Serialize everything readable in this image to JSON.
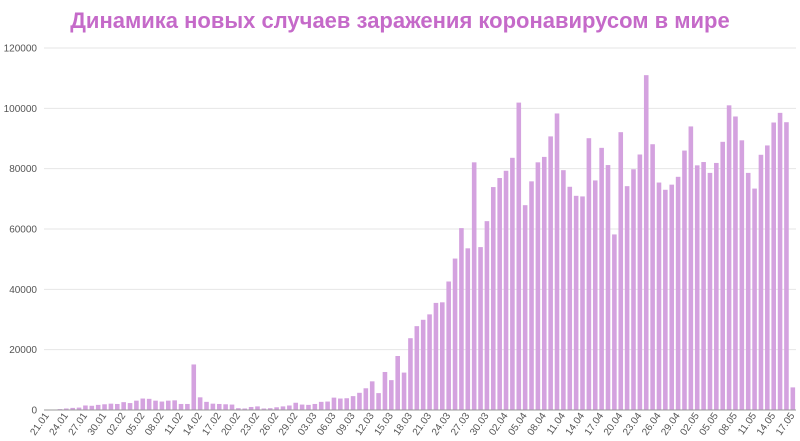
{
  "chart_data": {
    "type": "bar",
    "title": "Динамика новых случаев заражения коронавирусом в мире",
    "xlabel": "",
    "ylabel": "",
    "ylim": [
      0,
      120000
    ],
    "y_ticks": [
      0,
      20000,
      40000,
      60000,
      80000,
      100000,
      120000
    ],
    "grid": true,
    "colors": {
      "bar": "#d4a2df",
      "title": "#c56ac9",
      "grid": "#e6e6e6",
      "axis": "#999999"
    },
    "x_tick_labels": [
      "21.01",
      "24.01",
      "27.01",
      "30.01",
      "02.02",
      "05.02",
      "08.02",
      "11.02",
      "14.02",
      "17.02",
      "20.02",
      "23.02",
      "26.02",
      "29.02",
      "03.03",
      "06.03",
      "09.03",
      "12.03",
      "15.03",
      "18.03",
      "21.03",
      "24.03",
      "27.03",
      "30.03",
      "02.04",
      "05.04",
      "08.04",
      "11.04",
      "14.04",
      "17.04",
      "20.04",
      "23.04",
      "26.04",
      "29.04",
      "02.05",
      "05.05",
      "08.05",
      "11.05",
      "14.05",
      "17.05"
    ],
    "categories": [
      "21.01",
      "22.01",
      "23.01",
      "24.01",
      "25.01",
      "26.01",
      "27.01",
      "28.01",
      "29.01",
      "30.01",
      "31.01",
      "01.02",
      "02.02",
      "03.02",
      "04.02",
      "05.02",
      "06.02",
      "07.02",
      "08.02",
      "09.02",
      "10.02",
      "11.02",
      "12.02",
      "13.02",
      "14.02",
      "15.02",
      "16.02",
      "17.02",
      "18.02",
      "19.02",
      "20.02",
      "21.02",
      "22.02",
      "23.02",
      "24.02",
      "25.02",
      "26.02",
      "27.02",
      "28.02",
      "29.02",
      "01.03",
      "02.03",
      "03.03",
      "04.03",
      "05.03",
      "06.03",
      "07.03",
      "08.03",
      "09.03",
      "10.03",
      "11.03",
      "12.03",
      "13.03",
      "14.03",
      "15.03",
      "16.03",
      "17.03",
      "18.03",
      "19.03",
      "20.03",
      "21.03",
      "22.03",
      "23.03",
      "24.03",
      "25.03",
      "26.03",
      "27.03",
      "28.03",
      "29.03",
      "30.03",
      "31.03",
      "01.04",
      "02.04",
      "03.04",
      "04.04",
      "05.04",
      "06.04",
      "07.04",
      "08.04",
      "09.04",
      "10.04",
      "11.04",
      "12.04",
      "13.04",
      "14.04",
      "15.04",
      "16.04",
      "17.04",
      "18.04",
      "19.04",
      "20.04",
      "21.04",
      "22.04",
      "23.04",
      "24.04",
      "25.04",
      "26.04",
      "27.04",
      "28.04",
      "29.04",
      "30.04",
      "01.05",
      "02.05",
      "03.05",
      "04.05",
      "05.05",
      "06.05",
      "07.05",
      "08.05",
      "09.05",
      "10.05",
      "11.05",
      "12.05",
      "13.05",
      "14.05",
      "15.05",
      "16.05",
      "17.05"
    ],
    "values": [
      100,
      150,
      300,
      500,
      700,
      800,
      1500,
      1400,
      1700,
      1900,
      2100,
      2000,
      2600,
      2300,
      3100,
      3800,
      3700,
      3100,
      2800,
      3100,
      3200,
      2000,
      2000,
      15100,
      4200,
      2700,
      2100,
      2000,
      1900,
      1800,
      600,
      500,
      1000,
      1200,
      500,
      600,
      900,
      1200,
      1500,
      2400,
      1800,
      1700,
      2000,
      2700,
      2800,
      4100,
      3800,
      3900,
      4600,
      5700,
      7200,
      9500,
      5600,
      12600,
      9900,
      17900,
      12400,
      23800,
      27800,
      29900,
      31700,
      35500,
      35700,
      42600,
      50200,
      60300,
      53600,
      82100,
      54000,
      62600,
      73900,
      76900,
      79300,
      83600,
      101900,
      67900,
      75800,
      82100,
      83900,
      90700,
      98300,
      79500,
      74000,
      71000,
      70800,
      90100,
      76100,
      86900,
      81200,
      58200,
      92100,
      74200,
      79800,
      84700,
      111000,
      88100,
      75400,
      73000,
      74700,
      77300,
      86000,
      94000,
      81100,
      82200,
      78600,
      81900,
      88900,
      101000,
      97300,
      89400,
      78600,
      73400,
      84600,
      87700,
      95300,
      98500,
      95400,
      7500
    ]
  }
}
